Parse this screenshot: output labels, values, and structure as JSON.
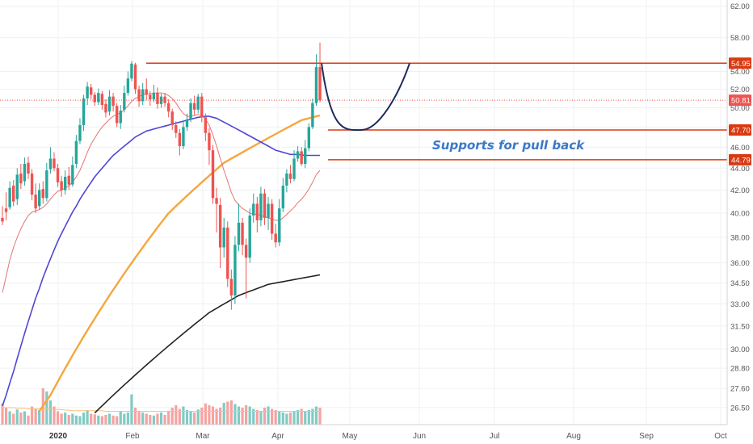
{
  "chart_data": {
    "type": "candlestick",
    "y_axis": {
      "position": "right",
      "ticks": [
        "62.00",
        "58.00",
        "54.00",
        "52.00",
        "50.00",
        "48.00",
        "46.00",
        "44.00",
        "42.00",
        "40.00",
        "38.00",
        "36.00",
        "34.50",
        "33.00",
        "31.50",
        "30.00",
        "28.80",
        "27.60",
        "26.50"
      ],
      "log_scale": true,
      "range": [
        26.0,
        62.5
      ]
    },
    "x_axis": {
      "ticks": [
        {
          "label": "2020",
          "bold": true
        },
        {
          "label": "Feb",
          "bold": false
        },
        {
          "label": "Mar",
          "bold": false
        },
        {
          "label": "Apr",
          "bold": false
        },
        {
          "label": "May",
          "bold": false
        },
        {
          "label": "Jun",
          "bold": false
        },
        {
          "label": "Jul",
          "bold": false
        },
        {
          "label": "Aug",
          "bold": false
        },
        {
          "label": "Sep",
          "bold": false
        },
        {
          "label": "Oct",
          "bold": false
        }
      ]
    },
    "grid": true,
    "colors": {
      "up": "#26a69a",
      "down": "#ef5350",
      "vol_up": "#80cbc4",
      "vol_down": "#f5a3a1",
      "ma_short": "#e57373",
      "ma_mid": "#5046d6",
      "ma_long": "#f6a63c",
      "ma_200": "#222222",
      "level": "#d93a12",
      "arc": "#1f2a5c",
      "annotation": "#3b78c8",
      "last_price": "#ef5350"
    },
    "candles": [
      [
        39.6,
        39.3,
        40.6,
        39.0
      ],
      [
        40.4,
        40.1,
        41.8,
        39.4
      ],
      [
        40.5,
        42.2,
        42.8,
        40.3
      ],
      [
        42.4,
        41.0,
        42.9,
        40.6
      ],
      [
        41.2,
        43.4,
        44.0,
        40.7
      ],
      [
        43.5,
        42.6,
        44.4,
        42.1
      ],
      [
        42.8,
        44.4,
        45.0,
        42.4
      ],
      [
        44.5,
        43.5,
        45.1,
        43.0
      ],
      [
        43.5,
        41.6,
        43.9,
        41.1
      ],
      [
        41.6,
        40.4,
        42.6,
        40.0
      ],
      [
        40.6,
        42.0,
        42.6,
        40.3
      ],
      [
        42.1,
        41.3,
        42.8,
        40.8
      ],
      [
        41.3,
        43.8,
        44.5,
        41.0
      ],
      [
        43.9,
        44.9,
        46.0,
        43.5
      ],
      [
        44.9,
        44.0,
        45.5,
        43.7
      ],
      [
        44.0,
        42.7,
        44.4,
        42.3
      ],
      [
        42.8,
        42.0,
        43.3,
        41.4
      ],
      [
        42.0,
        43.2,
        43.8,
        41.6
      ],
      [
        43.3,
        42.5,
        44.1,
        42.0
      ],
      [
        42.5,
        44.3,
        45.1,
        42.3
      ],
      [
        44.4,
        46.6,
        47.2,
        44.0
      ],
      [
        46.6,
        48.2,
        48.9,
        46.3
      ],
      [
        48.2,
        51.0,
        51.4,
        47.6
      ],
      [
        51.0,
        52.3,
        52.8,
        50.3
      ],
      [
        52.2,
        51.4,
        52.6,
        50.9
      ],
      [
        51.4,
        50.6,
        51.7,
        50.2
      ],
      [
        50.6,
        51.6,
        52.1,
        50.3
      ],
      [
        51.5,
        50.3,
        51.8,
        49.8
      ],
      [
        50.4,
        49.5,
        50.9,
        49.0
      ],
      [
        49.6,
        51.2,
        51.9,
        49.2
      ],
      [
        51.2,
        50.2,
        51.6,
        49.6
      ],
      [
        50.2,
        48.4,
        50.5,
        48.0
      ],
      [
        48.4,
        49.7,
        50.3,
        47.8
      ],
      [
        49.8,
        51.6,
        52.4,
        49.5
      ],
      [
        51.6,
        53.2,
        54.0,
        51.3
      ],
      [
        53.2,
        54.9,
        55.2,
        52.9
      ],
      [
        54.8,
        52.0,
        55.0,
        51.5
      ],
      [
        52.0,
        50.7,
        52.4,
        50.1
      ],
      [
        50.7,
        52.0,
        52.7,
        50.3
      ],
      [
        52.0,
        51.4,
        53.2,
        50.8
      ],
      [
        51.4,
        50.9,
        51.8,
        50.2
      ],
      [
        50.9,
        51.6,
        52.5,
        50.6
      ],
      [
        51.6,
        50.4,
        52.2,
        49.9
      ],
      [
        50.4,
        51.2,
        51.5,
        50.0
      ],
      [
        51.2,
        50.5,
        51.6,
        50.1
      ],
      [
        50.5,
        49.6,
        50.9,
        49.0
      ],
      [
        49.6,
        48.2,
        49.9,
        47.7
      ],
      [
        48.2,
        47.4,
        48.6,
        46.9
      ],
      [
        47.4,
        46.1,
        47.8,
        45.2
      ],
      [
        46.1,
        48.0,
        48.6,
        45.8
      ],
      [
        48.0,
        48.8,
        49.4,
        47.6
      ],
      [
        48.8,
        50.5,
        51.0,
        48.5
      ],
      [
        50.5,
        49.8,
        51.3,
        49.2
      ],
      [
        49.8,
        51.2,
        51.5,
        49.4
      ],
      [
        51.2,
        49.0,
        51.6,
        48.5
      ],
      [
        49.0,
        47.4,
        49.4,
        46.6
      ],
      [
        47.4,
        45.7,
        47.9,
        44.3
      ],
      [
        45.7,
        41.3,
        46.2,
        40.8
      ],
      [
        41.3,
        40.8,
        42.2,
        38.4
      ],
      [
        40.7,
        37.2,
        41.3,
        35.6
      ],
      [
        37.2,
        38.8,
        39.6,
        36.4
      ],
      [
        38.8,
        34.8,
        39.3,
        34.2
      ],
      [
        34.8,
        33.6,
        35.5,
        32.6
      ],
      [
        33.6,
        37.4,
        38.1,
        33.0
      ],
      [
        37.4,
        39.2,
        40.8,
        36.9
      ],
      [
        39.2,
        37.4,
        39.6,
        36.6
      ],
      [
        37.4,
        36.4,
        37.9,
        33.4
      ],
      [
        36.4,
        39.8,
        40.4,
        36.0
      ],
      [
        39.8,
        40.8,
        41.7,
        39.2
      ],
      [
        40.8,
        39.4,
        41.4,
        38.4
      ],
      [
        39.4,
        41.7,
        42.3,
        38.9
      ],
      [
        41.7,
        39.6,
        42.1,
        39.0
      ],
      [
        39.6,
        40.8,
        41.4,
        38.6
      ],
      [
        40.8,
        38.3,
        41.2,
        37.8
      ],
      [
        38.3,
        37.6,
        39.1,
        37.2
      ],
      [
        37.6,
        40.4,
        41.2,
        37.3
      ],
      [
        40.4,
        42.4,
        43.1,
        40.1
      ],
      [
        42.4,
        43.5,
        43.9,
        41.8
      ],
      [
        43.5,
        43.0,
        44.3,
        42.6
      ],
      [
        43.0,
        44.9,
        45.7,
        42.8
      ],
      [
        44.9,
        45.6,
        46.1,
        44.6
      ],
      [
        45.6,
        44.4,
        46.0,
        44.2
      ],
      [
        44.4,
        45.9,
        46.7,
        44.0
      ],
      [
        45.9,
        48.0,
        48.4,
        45.6
      ],
      [
        48.0,
        50.5,
        51.0,
        47.8
      ],
      [
        50.5,
        54.5,
        56.0,
        50.2
      ],
      [
        54.5,
        50.81,
        57.4,
        50.6
      ]
    ],
    "ma_short_values": [
      33.8,
      35.0,
      36.2,
      37.2,
      38.0,
      38.7,
      39.3,
      39.8,
      40.1,
      40.2,
      40.3,
      40.5,
      40.8,
      41.2,
      41.6,
      41.9,
      42.0,
      42.2,
      42.4,
      42.7,
      43.2,
      43.8,
      44.6,
      45.5,
      46.3,
      46.9,
      47.5,
      48.0,
      48.4,
      48.8,
      49.1,
      49.3,
      49.5,
      49.8,
      50.2,
      50.7,
      51.0,
      51.2,
      51.4,
      51.5,
      51.5,
      51.6,
      51.6,
      51.6,
      51.5,
      51.3,
      51.0,
      50.5,
      49.9,
      49.4,
      49.1,
      49.1,
      49.2,
      49.3,
      49.2,
      48.8,
      48.2,
      47.2,
      46.1,
      44.9,
      43.8,
      42.8,
      41.8,
      41.1,
      40.7,
      40.4,
      40.2,
      40.0,
      39.9,
      39.9,
      39.8,
      39.7,
      39.6,
      39.5,
      39.4,
      39.4,
      39.6,
      39.9,
      40.2,
      40.5,
      40.9,
      41.2,
      41.6,
      42.1,
      42.7,
      43.4,
      43.8
    ],
    "ma_mid_values": [
      26.6,
      27.2,
      27.9,
      28.6,
      29.4,
      30.2,
      31.0,
      31.8,
      32.6,
      33.4,
      34.1,
      34.9,
      35.6,
      36.3,
      37.0,
      37.7,
      38.3,
      38.9,
      39.5,
      40.1,
      40.6,
      41.2,
      41.7,
      42.2,
      42.7,
      43.2,
      43.6,
      44.0,
      44.4,
      44.8,
      45.2,
      45.5,
      45.8,
      46.1,
      46.4,
      46.7,
      47.0,
      47.2,
      47.4,
      47.6,
      47.7,
      47.8,
      47.9,
      48.0,
      48.1,
      48.2,
      48.3,
      48.4,
      48.5,
      48.6,
      48.7,
      48.8,
      48.9,
      49.0,
      49.05,
      49.1,
      49.1,
      49.0,
      48.9,
      48.7,
      48.5,
      48.3,
      48.1,
      47.9,
      47.7,
      47.5,
      47.3,
      47.1,
      46.9,
      46.7,
      46.5,
      46.3,
      46.1,
      45.9,
      45.7,
      45.6,
      45.5,
      45.4,
      45.3,
      45.3,
      45.3,
      45.25,
      45.2,
      45.2,
      45.2,
      45.2,
      45.2
    ],
    "ma_long_start_index": 10,
    "ma_long_values": [
      26.3,
      26.6,
      26.9,
      27.2,
      27.6,
      28.0,
      28.4,
      28.8,
      29.2,
      29.6,
      30.0,
      30.4,
      30.8,
      31.2,
      31.6,
      32.0,
      32.4,
      32.8,
      33.2,
      33.6,
      34.0,
      34.4,
      34.8,
      35.2,
      35.6,
      36.0,
      36.4,
      36.8,
      37.2,
      37.6,
      38.0,
      38.4,
      38.8,
      39.2,
      39.6,
      40.0,
      40.3,
      40.6,
      40.9,
      41.2,
      41.5,
      41.8,
      42.1,
      42.4,
      42.7,
      43.0,
      43.3,
      43.6,
      43.9,
      44.2,
      44.5,
      44.7,
      44.9,
      45.1,
      45.3,
      45.5,
      45.7,
      45.9,
      46.1,
      46.3,
      46.5,
      46.7,
      46.9,
      47.1,
      47.3,
      47.5,
      47.7,
      47.9,
      48.1,
      48.3,
      48.5,
      48.7,
      48.8,
      48.9,
      49.0,
      49.1,
      49.2
    ],
    "ma_200_start_index": 25,
    "ma_200_values": [
      26.2,
      26.4,
      26.6,
      26.8,
      27.0,
      27.2,
      27.4,
      27.6,
      27.8,
      28.0,
      28.2,
      28.4,
      28.6,
      28.8,
      29.0,
      29.2,
      29.4,
      29.6,
      29.8,
      30.0,
      30.2,
      30.4,
      30.6,
      30.8,
      31.0,
      31.2,
      31.4,
      31.6,
      31.8,
      32.0,
      32.2,
      32.4,
      32.55,
      32.7,
      32.85,
      33.0,
      33.15,
      33.3,
      33.45,
      33.6,
      33.7,
      33.8,
      33.9,
      34.0,
      34.1,
      34.2,
      34.3,
      34.4,
      34.45,
      34.5,
      34.55,
      34.6,
      34.65,
      34.7,
      34.75,
      34.8,
      34.85,
      34.9,
      34.95,
      35.0,
      35.05,
      35.1
    ],
    "volume_scale_max": 100,
    "volume": [
      35,
      28,
      22,
      18,
      25,
      20,
      22,
      15,
      30,
      26,
      24,
      60,
      55,
      40,
      30,
      22,
      18,
      20,
      16,
      18,
      15,
      14,
      20,
      24,
      18,
      17,
      15,
      14,
      16,
      18,
      15,
      14,
      22,
      18,
      20,
      50,
      28,
      22,
      20,
      18,
      16,
      15,
      18,
      20,
      16,
      22,
      28,
      32,
      26,
      30,
      24,
      22,
      20,
      25,
      28,
      35,
      32,
      30,
      26,
      28,
      36,
      38,
      40,
      34,
      30,
      28,
      32,
      30,
      26,
      24,
      22,
      28,
      30,
      26,
      24,
      22,
      20,
      18,
      20,
      22,
      24,
      26,
      22,
      24,
      26,
      30,
      28
    ],
    "volume_ma": [
      28,
      28,
      28,
      28,
      27,
      27,
      27,
      26,
      26,
      26,
      26,
      26,
      26,
      26,
      25,
      25,
      25,
      24,
      24,
      23,
      23,
      23,
      23,
      23,
      23,
      23,
      23,
      23,
      22,
      22,
      22,
      22,
      22,
      22,
      22,
      22,
      22,
      22,
      22,
      22,
      22,
      22,
      22,
      22,
      22,
      22,
      22,
      22,
      22,
      22,
      22,
      22,
      22,
      22,
      22,
      22,
      22,
      22,
      22,
      22,
      22,
      22,
      22,
      22,
      22,
      22,
      22,
      22,
      22,
      22,
      22,
      22,
      22,
      22,
      22,
      22,
      22,
      22,
      22,
      22,
      22,
      22,
      22,
      22,
      22,
      22,
      22
    ],
    "levels": [
      {
        "label": "54.95",
        "value": 54.95,
        "from": "Feb"
      },
      {
        "label": "47.70",
        "value": 47.7,
        "from": "May"
      },
      {
        "label": "44.79",
        "value": 44.79,
        "from": "May"
      }
    ],
    "last_price": {
      "label": "50.81",
      "value": 50.81
    },
    "annotation": "Supports for pull back",
    "projection_arc": {
      "start": 54.95,
      "bottom": 47.7,
      "end": 54.95
    }
  }
}
